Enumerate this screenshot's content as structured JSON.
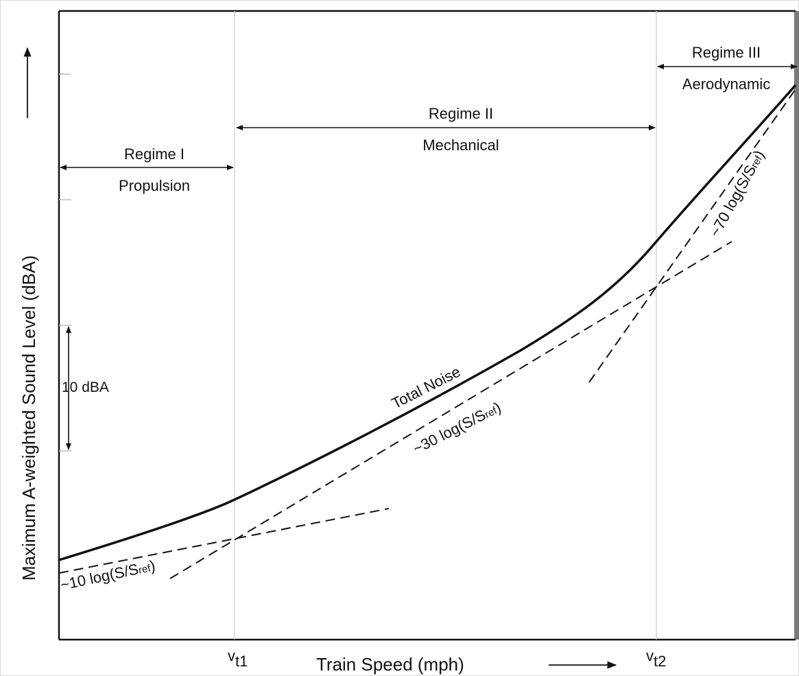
{
  "chart_data": {
    "type": "line",
    "title": "",
    "xlabel": "Train Speed (mph)",
    "ylabel": "Maximum A-weighted Sound Level (dBA)",
    "x_ticks": [
      {
        "id": "vt1",
        "main": "v",
        "sub": "t1"
      },
      {
        "id": "vt2",
        "main": "v",
        "sub": "t2"
      }
    ],
    "scale_bar": {
      "label": "10 dBA",
      "value": 10
    },
    "regimes": [
      {
        "id": "regime-1",
        "name": "Regime I",
        "source": "Propulsion"
      },
      {
        "id": "regime-2",
        "name": "Regime II",
        "source": "Mechanical"
      },
      {
        "id": "regime-3",
        "name": "Regime III",
        "source": "Aerodynamic"
      }
    ],
    "curves": [
      {
        "id": "total-noise",
        "label": "Total Noise",
        "style": "solid"
      },
      {
        "id": "propulsion-asymptote",
        "label_main": "10 log(S/S",
        "label_sub": "ref",
        "label_end": ")",
        "prefix": "~",
        "style": "dashed"
      },
      {
        "id": "mechanical-asymptote",
        "label_main": "30 log(S/S",
        "label_sub": "ref",
        "label_end": ")",
        "prefix": "~",
        "style": "dashed"
      },
      {
        "id": "aerodynamic-asymptote",
        "label_main": "70 log(S/S",
        "label_sub": "ref",
        "label_end": ")",
        "prefix": "~",
        "style": "dashed"
      }
    ],
    "grid": false,
    "colors": {
      "line": "#111111",
      "frame": "#111111",
      "guide": "#cccccc"
    }
  }
}
